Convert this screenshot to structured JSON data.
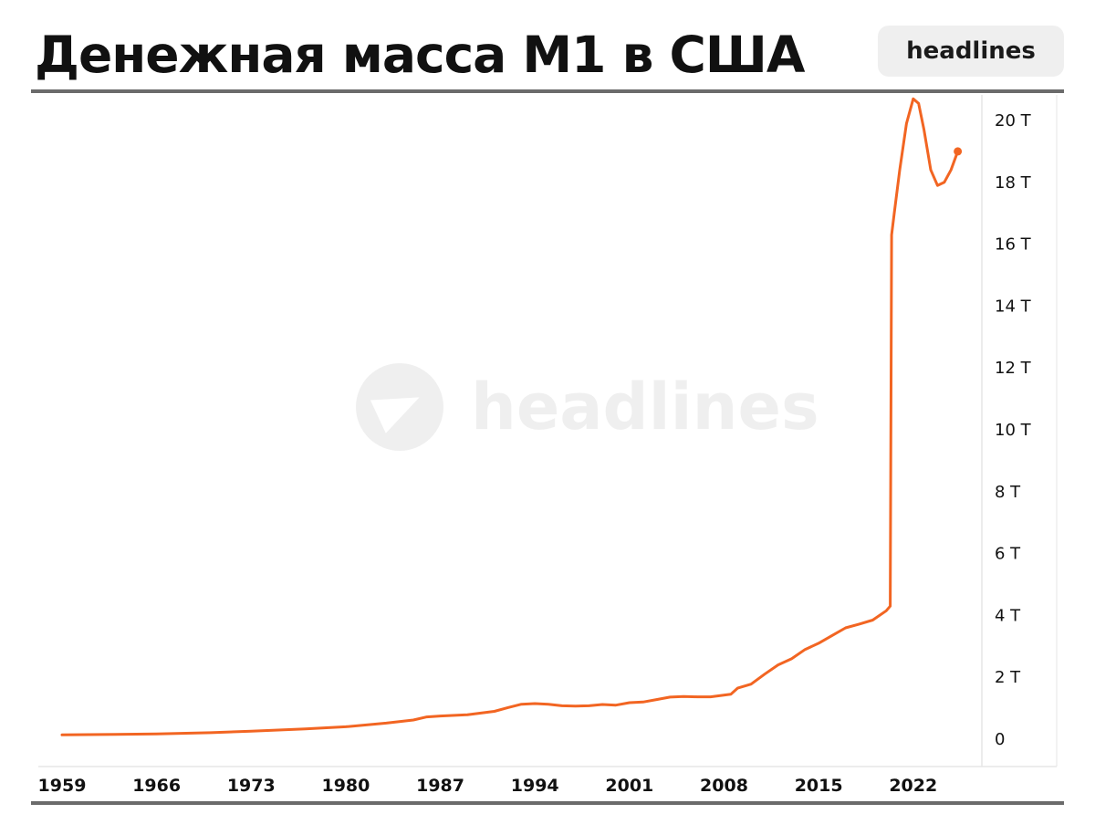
{
  "header": {
    "title": "Денежная масса М1 в США",
    "badge": "headlines"
  },
  "watermark": {
    "text": "headlines"
  },
  "colors": {
    "line": "#f26522",
    "grid": "#e6e6e6",
    "text": "#111111",
    "rule": "#6b6b6b"
  },
  "chart_data": {
    "type": "line",
    "title": "Денежная масса М1 в США",
    "xlabel": "",
    "ylabel": "",
    "x_ticks": [
      "1959",
      "1966",
      "1973",
      "1980",
      "1987",
      "1994",
      "2001",
      "2008",
      "2015",
      "2022"
    ],
    "y_ticks": [
      "0",
      "2 T",
      "4 T",
      "6 T",
      "8 T",
      "10 T",
      "12 T",
      "14 T",
      "16 T",
      "18 T",
      "20 T"
    ],
    "xlim": [
      1959,
      2026
    ],
    "ylim": [
      0,
      20.6
    ],
    "y_axis_position": "right",
    "grid": false,
    "series": [
      {
        "values": [
          [
            1959,
            0.14
          ],
          [
            1962,
            0.15
          ],
          [
            1966,
            0.17
          ],
          [
            1970,
            0.21
          ],
          [
            1973,
            0.26
          ],
          [
            1977,
            0.33
          ],
          [
            1980,
            0.4
          ],
          [
            1983,
            0.52
          ],
          [
            1985,
            0.62
          ],
          [
            1986,
            0.72
          ],
          [
            1987,
            0.75
          ],
          [
            1989,
            0.79
          ],
          [
            1991,
            0.9
          ],
          [
            1992,
            1.02
          ],
          [
            1993,
            1.13
          ],
          [
            1994,
            1.15
          ],
          [
            1995,
            1.13
          ],
          [
            1996,
            1.08
          ],
          [
            1997,
            1.07
          ],
          [
            1998,
            1.08
          ],
          [
            1999,
            1.12
          ],
          [
            2000,
            1.1
          ],
          [
            2001,
            1.18
          ],
          [
            2002,
            1.2
          ],
          [
            2003,
            1.28
          ],
          [
            2004,
            1.36
          ],
          [
            2005,
            1.38
          ],
          [
            2006,
            1.37
          ],
          [
            2007,
            1.37
          ],
          [
            2008.5,
            1.45
          ],
          [
            2009,
            1.65
          ],
          [
            2010,
            1.78
          ],
          [
            2011,
            2.1
          ],
          [
            2012,
            2.4
          ],
          [
            2013,
            2.6
          ],
          [
            2014,
            2.9
          ],
          [
            2015,
            3.1
          ],
          [
            2016,
            3.35
          ],
          [
            2017,
            3.6
          ],
          [
            2018,
            3.72
          ],
          [
            2019,
            3.85
          ],
          [
            2020.0,
            4.15
          ],
          [
            2020.3,
            4.3
          ],
          [
            2020.4,
            16.3
          ],
          [
            2020.6,
            17.0
          ],
          [
            2021.0,
            18.4
          ],
          [
            2021.5,
            19.9
          ],
          [
            2022.0,
            20.7
          ],
          [
            2022.4,
            20.55
          ],
          [
            2022.8,
            19.7
          ],
          [
            2023.3,
            18.4
          ],
          [
            2023.8,
            17.9
          ],
          [
            2024.3,
            18.0
          ],
          [
            2024.8,
            18.4
          ],
          [
            2025.3,
            19.0
          ]
        ]
      }
    ]
  }
}
